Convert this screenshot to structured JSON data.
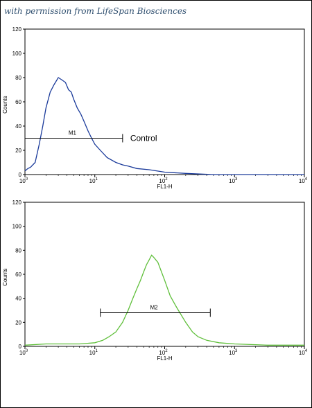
{
  "credit": "with permission from LifeSpan Biosciences",
  "chart_data": [
    {
      "type": "line",
      "title": "",
      "xlabel": "FL1-H",
      "ylabel": "Counts",
      "x_scale": "log",
      "xlim": [
        1,
        10000
      ],
      "ylim": [
        0,
        120
      ],
      "x_ticks": [
        {
          "base": "10",
          "exp": "0"
        },
        {
          "base": "10",
          "exp": "1"
        },
        {
          "base": "10",
          "exp": "2"
        },
        {
          "base": "10",
          "exp": "3"
        },
        {
          "base": "10",
          "exp": "4"
        }
      ],
      "y_ticks": [
        "0",
        "20",
        "40",
        "60",
        "80",
        "100",
        "120"
      ],
      "color": "#1a3a9a",
      "series": [
        {
          "x": [
            1.0,
            1.1,
            1.2,
            1.4,
            1.6,
            1.8,
            2.0,
            2.3,
            2.6,
            3.0,
            3.4,
            3.8,
            4.2,
            4.6,
            5.0,
            5.6,
            6.3,
            7.0,
            8.0,
            9.0,
            10,
            12,
            15,
            20,
            25,
            30,
            40,
            60,
            100,
            200,
            500,
            1000,
            3000,
            10000
          ],
          "values": [
            3,
            5,
            6,
            10,
            25,
            40,
            55,
            68,
            74,
            80,
            78,
            76,
            70,
            68,
            62,
            55,
            50,
            44,
            36,
            30,
            25,
            20,
            14,
            10,
            8,
            7,
            5,
            4,
            2,
            1,
            0,
            0,
            0,
            0
          ]
        }
      ],
      "gate": {
        "label": "M1",
        "x_start": 1,
        "x_end": 25,
        "y": 30
      },
      "annotation": "Control"
    },
    {
      "type": "line",
      "title": "",
      "xlabel": "FL1-H",
      "ylabel": "Counts",
      "x_scale": "log",
      "xlim": [
        1,
        10000
      ],
      "ylim": [
        0,
        120
      ],
      "x_ticks": [
        {
          "base": "10",
          "exp": "0"
        },
        {
          "base": "10",
          "exp": "1"
        },
        {
          "base": "10",
          "exp": "2"
        },
        {
          "base": "10",
          "exp": "3"
        },
        {
          "base": "10",
          "exp": "4"
        }
      ],
      "y_ticks": [
        "0",
        "20",
        "40",
        "60",
        "80",
        "100",
        "120"
      ],
      "color": "#5fbf3a",
      "series": [
        {
          "x": [
            1.0,
            2.0,
            4.0,
            6.0,
            10,
            13,
            16,
            20,
            25,
            30,
            35,
            40,
            45,
            50,
            55,
            60,
            65,
            70,
            80,
            90,
            100,
            120,
            150,
            200,
            250,
            300,
            400,
            600,
            1000,
            3000,
            10000
          ],
          "values": [
            1,
            2,
            2,
            2,
            3,
            5,
            8,
            12,
            20,
            30,
            40,
            48,
            55,
            62,
            68,
            72,
            76,
            74,
            70,
            62,
            55,
            42,
            32,
            20,
            12,
            8,
            5,
            3,
            2,
            1,
            1
          ]
        }
      ],
      "gate": {
        "label": "M2",
        "x_start": 12,
        "x_end": 450,
        "y": 28
      }
    }
  ]
}
